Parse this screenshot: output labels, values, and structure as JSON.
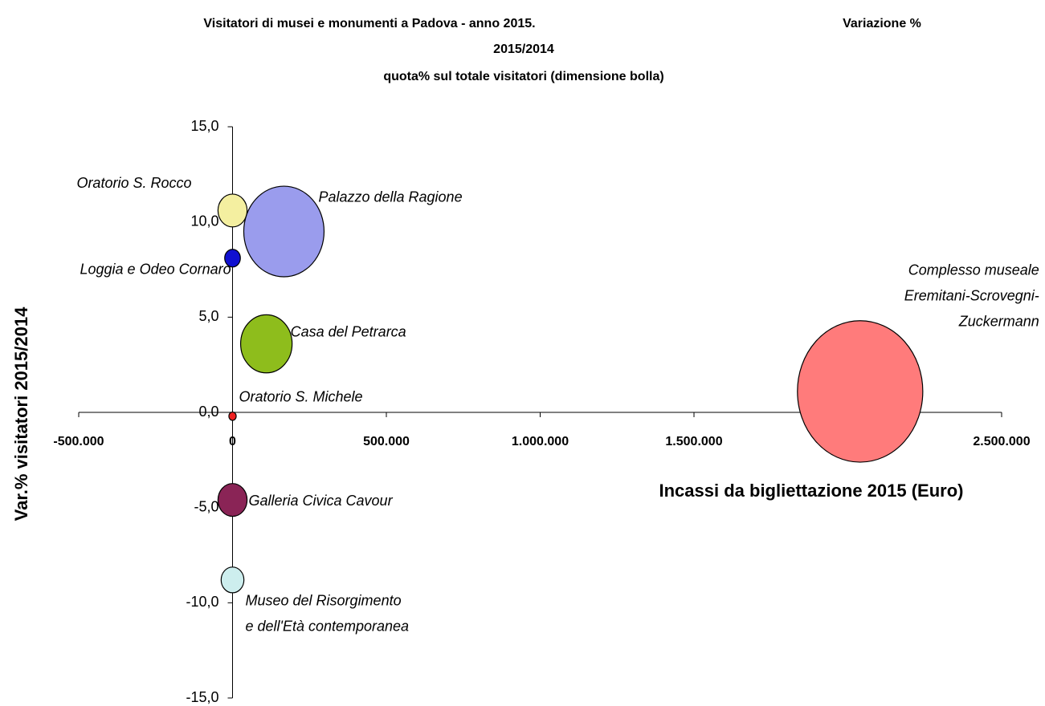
{
  "chart_data": {
    "type": "bubble",
    "title_lines": [
      "Visitatori di musei e monumenti a Padova - anno 2015.",
      "Variazione %",
      "2015/2014",
      "quota% sul totale visitatori (dimensione bolla)"
    ],
    "x_label": "Incassi da bigliettazione 2015 (Euro)",
    "y_label": "Var.% visitatori 2015/2014",
    "xlim": [
      -500000,
      2500000
    ],
    "xticks": [
      {
        "value": -500000,
        "label": "-500.000"
      },
      0,
      {
        "value": 500000,
        "label": "500.000"
      },
      {
        "value": 1000000,
        "label": "1.000.000"
      },
      {
        "value": 1500000,
        "label": "1.500.000"
      },
      {
        "value": 2000000,
        "label": "2.000.000"
      },
      {
        "value": 2500000,
        "label": "2.500.000"
      }
    ],
    "ylim": [
      -15,
      15
    ],
    "yticks": [
      {
        "value": 15,
        "label": "15,0"
      },
      {
        "value": 10,
        "label": "10,0"
      },
      {
        "value": 5,
        "label": "5,0"
      },
      {
        "value": 0,
        "label": "0,0"
      },
      {
        "value": -5,
        "label": "-5,0"
      },
      {
        "value": -10,
        "label": "-10,0"
      },
      {
        "value": -15,
        "label": "-15,0"
      }
    ],
    "points": [
      {
        "name_lines": [
          "Oratorio S. Rocco"
        ],
        "color": "#f4efa0",
        "x": 0,
        "y": 10.6,
        "size": 3.1
      },
      {
        "name_lines": [
          "Palazzo della Ragione"
        ],
        "color": "#9a9ced",
        "x": 167000,
        "y": 9.5,
        "size": 23.6
      },
      {
        "name_lines": [
          "Loggia e Odeo Cornaro"
        ],
        "color": "#1010d0",
        "x": 0,
        "y": 8.1,
        "size": 0.9
      },
      {
        "name_lines": [
          "Casa del Petrarca"
        ],
        "color": "#8ebd1c",
        "x": 110000,
        "y": 3.6,
        "size": 9.7
      },
      {
        "name_lines": [
          "Oratorio S. Michele"
        ],
        "color": "#ee2020",
        "x": 0,
        "y": -0.2,
        "size": 0.2
      },
      {
        "name_lines": [
          "Galleria Civica Cavour"
        ],
        "color": "#8a2456",
        "x": 0,
        "y": -4.6,
        "size": 3.1
      },
      {
        "name_lines": [
          "Museo del Risorgimento",
          "e dell'Età contemporanea"
        ],
        "color": "#cdeeee",
        "x": 0,
        "y": -8.8,
        "size": 1.9
      },
      {
        "name_lines": [
          "Complesso museale",
          "Eremitani-Scrovegni-",
          "Zuckermann"
        ],
        "color": "#ff7b7b",
        "x": 2040000,
        "y": 1.1,
        "size": 57.5
      }
    ]
  }
}
